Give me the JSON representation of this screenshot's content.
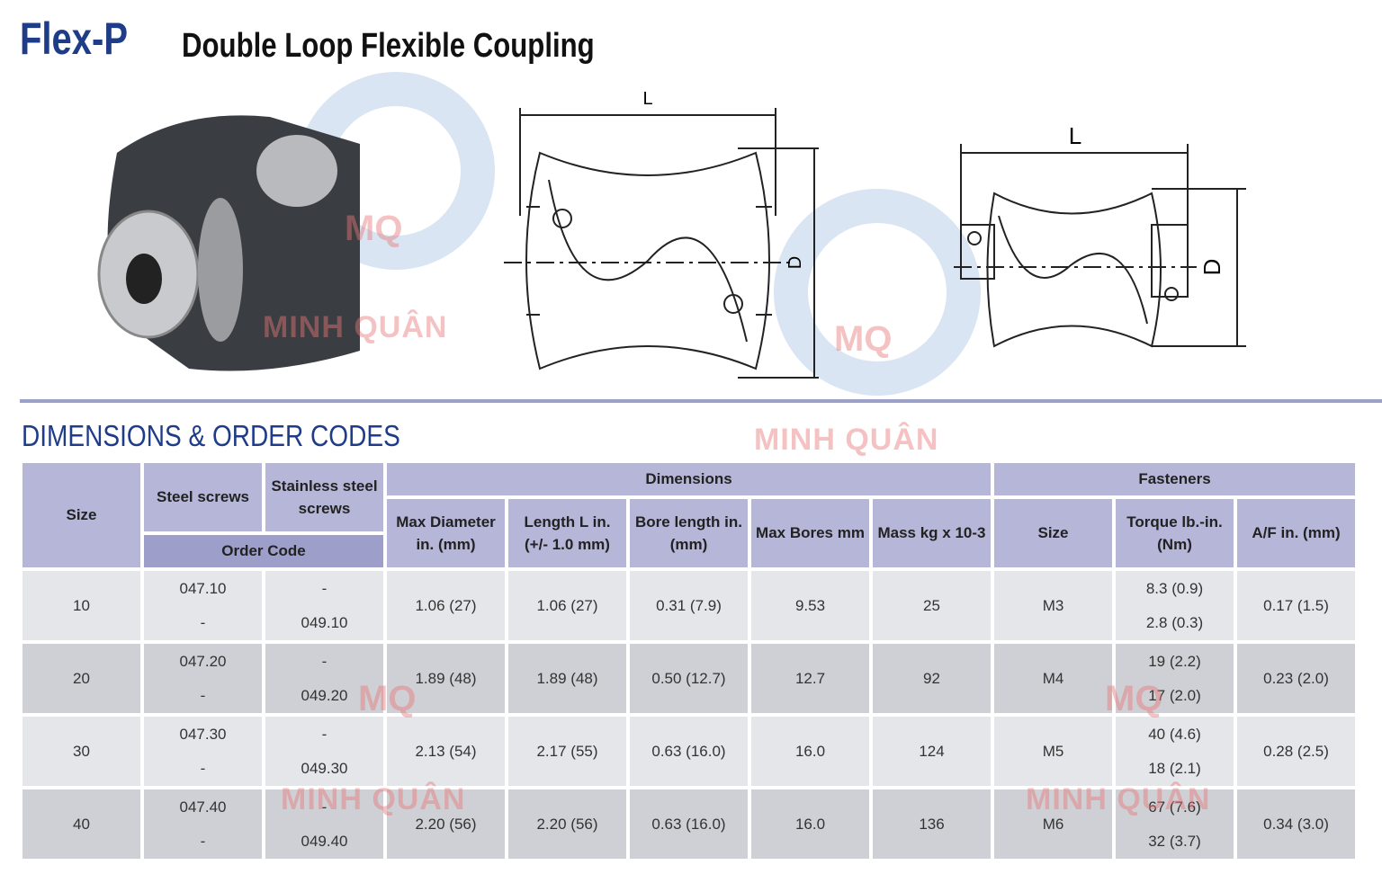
{
  "header": {
    "brand": "Flex-P",
    "title": "Double Loop Flexible Coupling"
  },
  "drawings": {
    "left_length": "L",
    "left_diameter": "D",
    "right_length": "L",
    "right_diameter": "D"
  },
  "watermark": {
    "logo": "MQ",
    "name": "MINH QUÂN"
  },
  "section_title": "DIMENSIONS & ORDER CODES",
  "table": {
    "headers": {
      "size": "Size",
      "steel": "Steel screws",
      "stainless": "Stainless steel screws",
      "order_code": "Order Code",
      "dimensions": "Dimensions",
      "fasteners": "Fasteners",
      "max_diameter": "Max Diameter in. (mm)",
      "length": "Length L in. (+/- 1.0 mm)",
      "bore_length": "Bore length in. (mm)",
      "max_bores": "Max Bores mm",
      "mass": "Mass kg x 10-3",
      "fastener_size": "Size",
      "torque": "Torque lb.-in. (Nm)",
      "af": "A/F in. (mm)"
    },
    "rows": [
      {
        "size": "10",
        "steel": [
          "047.10",
          "-"
        ],
        "stainless": [
          "-",
          "049.10"
        ],
        "max_diameter": "1.06 (27)",
        "length": "1.06 (27)",
        "bore_length": "0.31 (7.9)",
        "max_bores": "9.53",
        "mass": "25",
        "fastener_size": "M3",
        "torque": [
          "8.3 (0.9)",
          "2.8 (0.3)"
        ],
        "af": "0.17 (1.5)"
      },
      {
        "size": "20",
        "steel": [
          "047.20",
          "-"
        ],
        "stainless": [
          "-",
          "049.20"
        ],
        "max_diameter": "1.89 (48)",
        "length": "1.89 (48)",
        "bore_length": "0.50 (12.7)",
        "max_bores": "12.7",
        "mass": "92",
        "fastener_size": "M4",
        "torque": [
          "19 (2.2)",
          "17 (2.0)"
        ],
        "af": "0.23 (2.0)"
      },
      {
        "size": "30",
        "steel": [
          "047.30",
          "-"
        ],
        "stainless": [
          "-",
          "049.30"
        ],
        "max_diameter": "2.13 (54)",
        "length": "2.17 (55)",
        "bore_length": "0.63 (16.0)",
        "max_bores": "16.0",
        "mass": "124",
        "fastener_size": "M5",
        "torque": [
          "40 (4.6)",
          "18 (2.1)"
        ],
        "af": "0.28 (2.5)"
      },
      {
        "size": "40",
        "steel": [
          "047.40",
          "-"
        ],
        "stainless": [
          "-",
          "049.40"
        ],
        "max_diameter": "2.20 (56)",
        "length": "2.20 (56)",
        "bore_length": "0.63 (16.0)",
        "max_bores": "16.0",
        "mass": "136",
        "fastener_size": "M6",
        "torque": [
          "67 (7.6)",
          "32 (3.7)"
        ],
        "af": "0.34 (3.0)"
      }
    ]
  }
}
